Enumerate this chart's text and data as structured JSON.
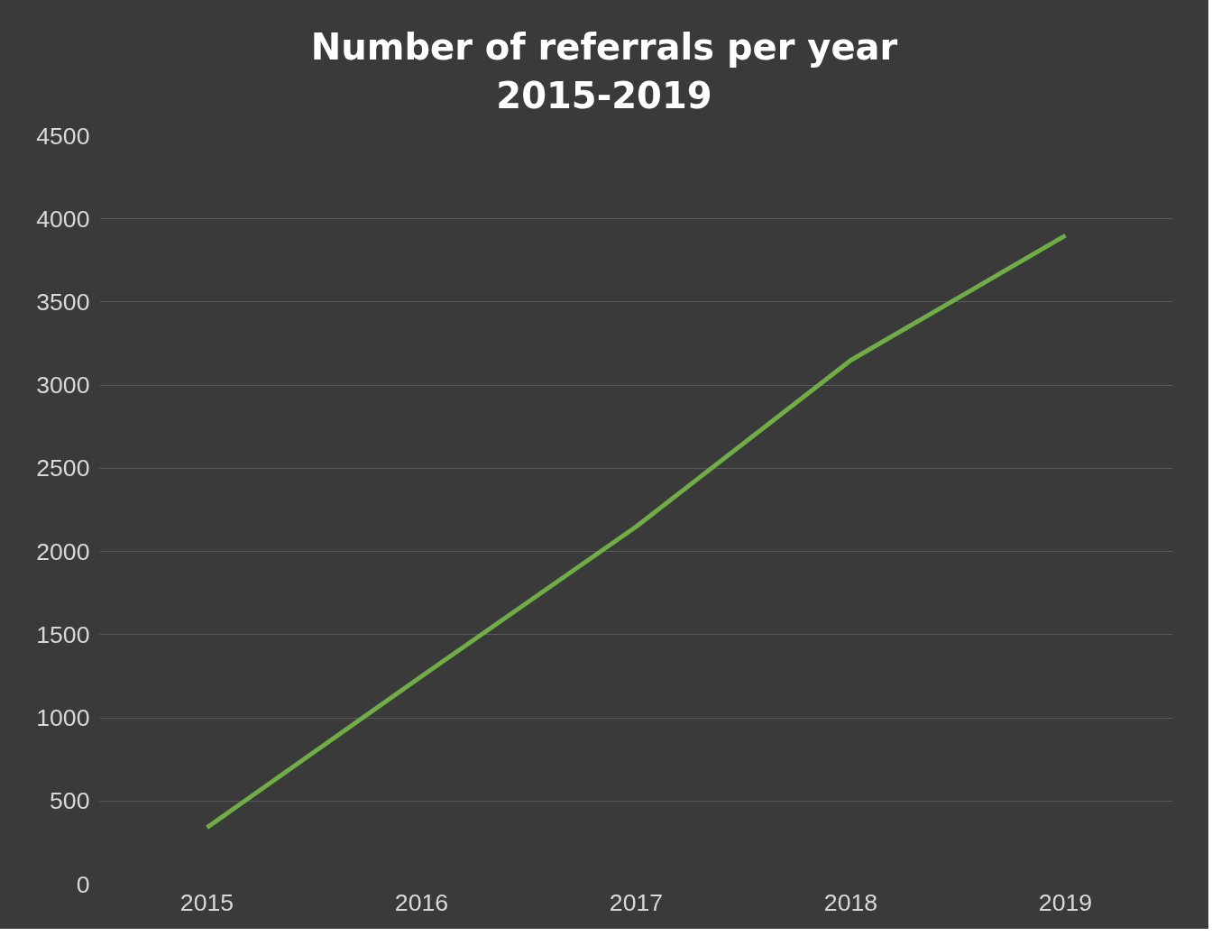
{
  "chart_data": {
    "type": "line",
    "title": "Number of referrals per year\n2015-2019",
    "categories": [
      "2015",
      "2016",
      "2017",
      "2018",
      "2019"
    ],
    "series": [
      {
        "color": "#70ad47",
        "values": [
          340,
          1250,
          2150,
          3150,
          3900
        ]
      }
    ],
    "ylim": [
      0,
      4500
    ],
    "yticks": [
      0,
      500,
      1000,
      1500,
      2000,
      2500,
      3000,
      3500,
      4000,
      4500
    ],
    "grid": "y",
    "marker": "none",
    "line_style": "solid"
  }
}
